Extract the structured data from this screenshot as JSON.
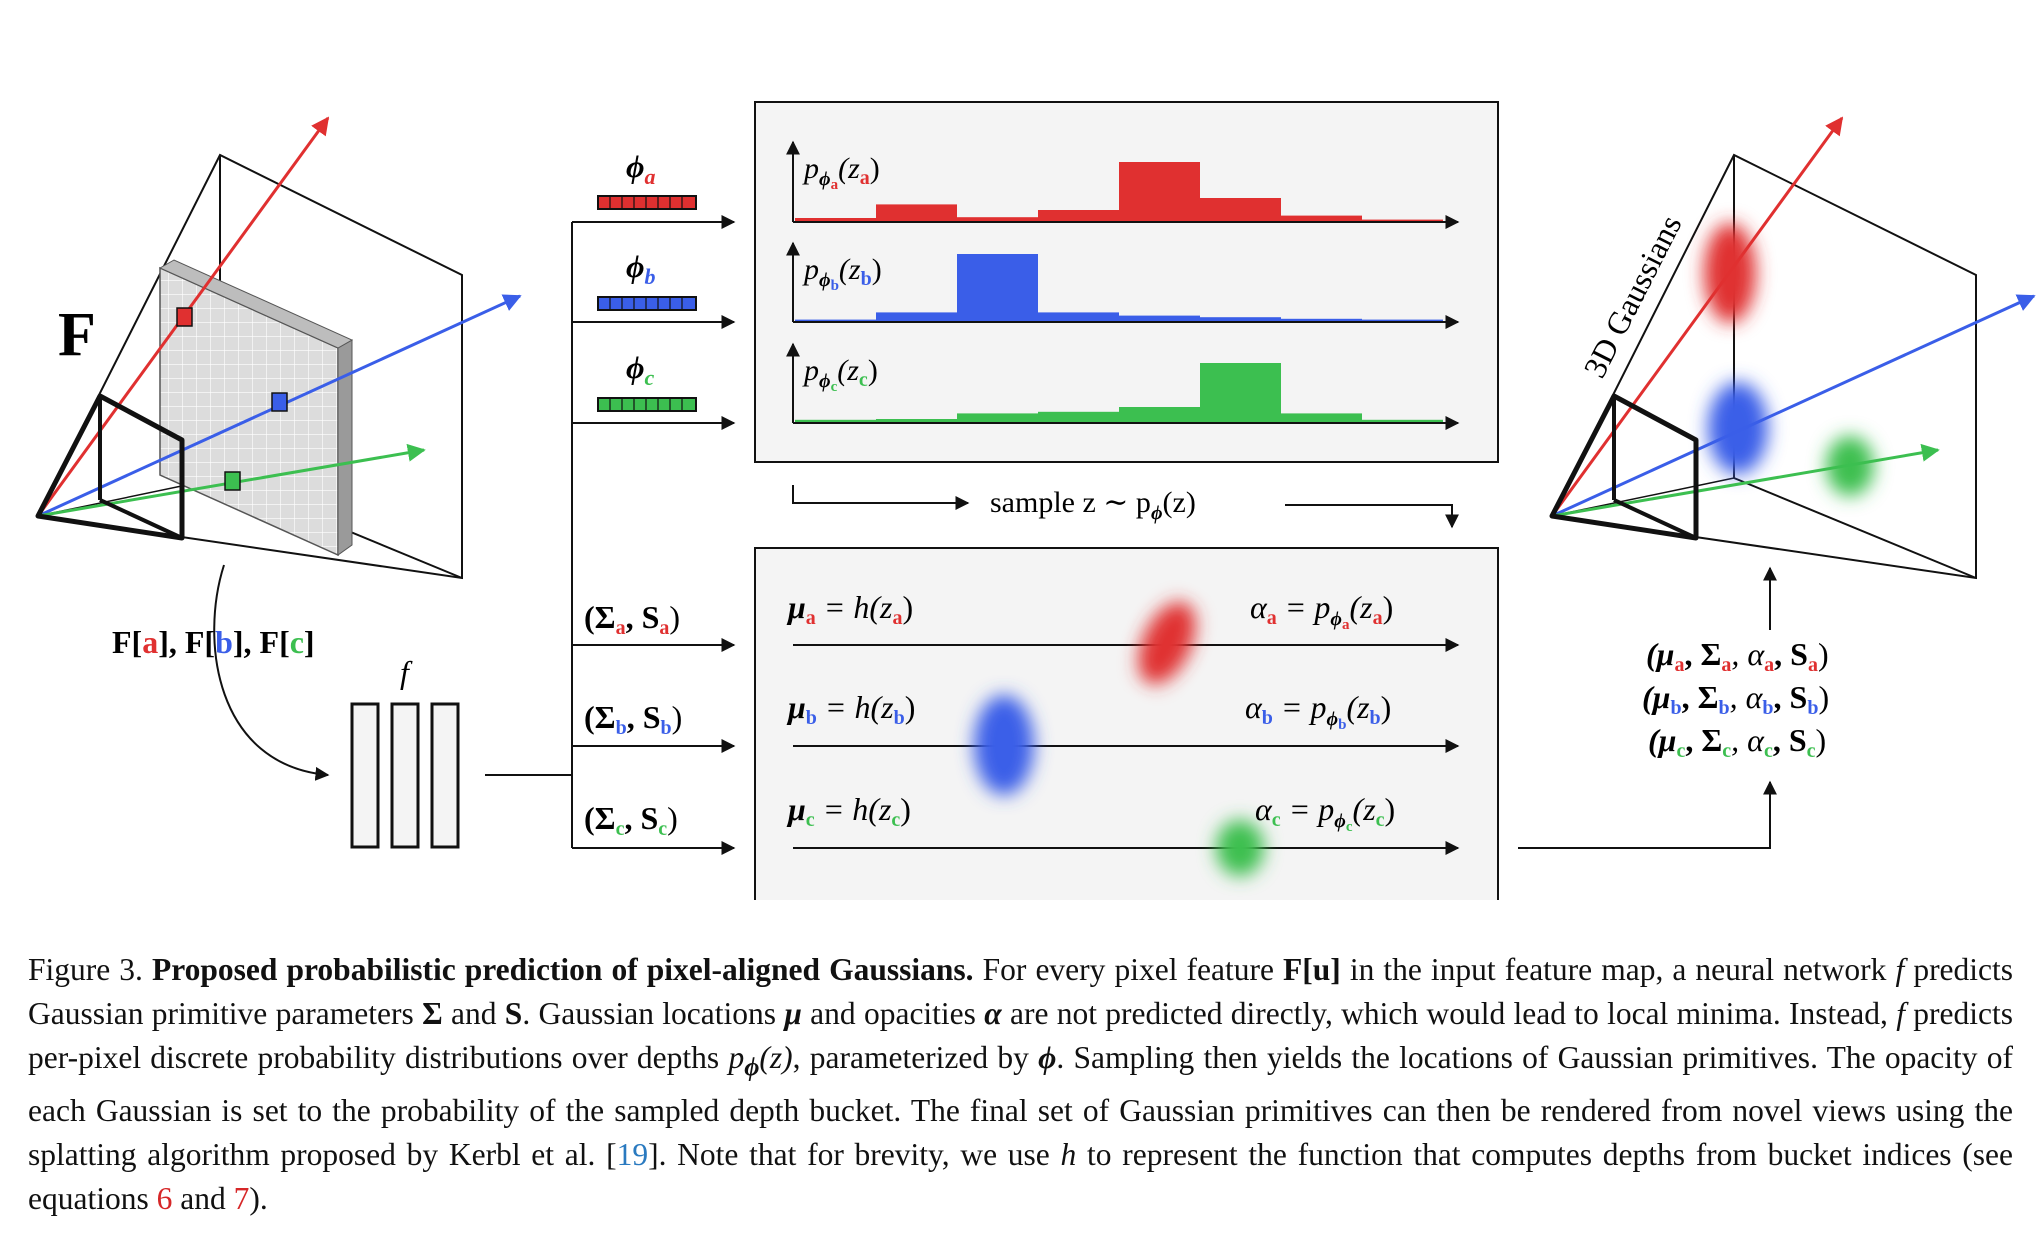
{
  "colors": {
    "red": "#e03030",
    "blue": "#3a5ee8",
    "green": "#3cbf50",
    "panel": "#f4f4f4",
    "ref_red": "#d62728",
    "ref_blue": "#2a7ac0"
  },
  "figure": {
    "feature_map_label": "F",
    "feature_index": {
      "prefix": "F[",
      "a": "a",
      "sep1": "], F[",
      "b": "b",
      "sep2": "], F[",
      "c": "c",
      "suffix": "]"
    },
    "network_label": "f",
    "phi": {
      "symbol": "ϕ",
      "a": "a",
      "b": "b",
      "c": "c"
    },
    "distributions": {
      "p": "p",
      "phi_sub": "ϕ",
      "z": "(z",
      "close": ")",
      "a": "a",
      "b": "b",
      "c": "c",
      "hist_a": [
        0.05,
        0.22,
        0.06,
        0.15,
        0.75,
        0.3,
        0.08,
        0.03
      ],
      "hist_b": [
        0.03,
        0.12,
        0.85,
        0.12,
        0.08,
        0.06,
        0.04,
        0.03
      ],
      "hist_c": [
        0.04,
        0.05,
        0.12,
        0.14,
        0.2,
        0.75,
        0.12,
        0.04
      ]
    },
    "sample_label": "sample z ∼ p",
    "sample_label_end": "(z)",
    "sample_phi": "ϕ",
    "params": {
      "open": "(Σ",
      "mid": ", S",
      "close": ")",
      "a": "a",
      "b": "b",
      "c": "c"
    },
    "rows": {
      "mu": "μ",
      "eq_h": " = h(z",
      "alpha": "α",
      "eq_p": " = p",
      "phi": "ϕ",
      "z": "(z",
      "close": ")",
      "a": "a",
      "b": "b",
      "c": "c"
    },
    "outputs": {
      "open": "(μ",
      "sigma": ", Σ",
      "alpha": ", α",
      "s": ", S",
      "close": ")",
      "a": "a",
      "b": "b",
      "c": "c"
    },
    "gaussians_label": "3D Gaussians"
  },
  "caption": {
    "figure_no": "Figure 3.",
    "title": "Proposed probabilistic prediction of pixel-aligned Gaussians.",
    "s1": "For every pixel feature",
    "Fu": "F[u]",
    "s2": "in the input feature map, a neural network",
    "f1": "f",
    "s3": "predicts Gaussian primitive parameters",
    "Sigma": "Σ",
    "s4": "and",
    "S": "S",
    "s5": ". Gaussian locations",
    "mu": "μ",
    "s6": "and opacities",
    "alpha": "α",
    "s7": "are not predicted directly, which would lead to local minima. Instead,",
    "f2": "f",
    "s8": "predicts per-pixel discrete probability distributions over depths",
    "pz": "p",
    "pz_sub": "ϕ",
    "pz_arg": "(z)",
    "s9": ", parameterized by",
    "phi": "ϕ",
    "s10": ". Sampling then yields the locations of Gaussian primitives. The opacity of each Gaussian is set to the probability of the sampled depth bucket. The final set of Gaussian primitives can then be rendered from novel views using the splatting algorithm proposed by Kerbl et al. [",
    "ref19": "19",
    "s11": "]. Note that for brevity, we use",
    "h": "h",
    "s12": "to represent the function that computes depths from bucket indices (see equations",
    "eq6": "6",
    "s13": "and",
    "eq7": "7",
    "s14": ")."
  }
}
